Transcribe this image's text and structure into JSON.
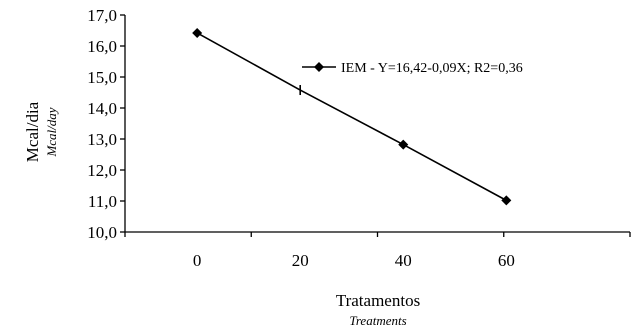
{
  "chart_data": {
    "type": "line",
    "x": [
      0,
      20,
      40,
      60
    ],
    "series": [
      {
        "name": "IEM - Y=16,42-0,09X; R2=0,36",
        "values": [
          16.42,
          14.58,
          12.82,
          11.02
        ]
      }
    ],
    "xlabel": "Tratamentos",
    "xlabel_sub": "Treatments",
    "ylabel": "Mcal/dia",
    "ylabel_sub": "Mcal/day",
    "ylim": [
      10.0,
      17.0
    ],
    "xlim": [
      -14,
      84
    ],
    "x_ticks": [
      "0",
      "20",
      "40",
      "60"
    ],
    "y_ticks": [
      "10,0",
      "11,0",
      "12,0",
      "13,0",
      "14,0",
      "15,0",
      "16,0",
      "17,0"
    ],
    "grid": false,
    "legend_position": "top-right",
    "color": "#000000"
  }
}
